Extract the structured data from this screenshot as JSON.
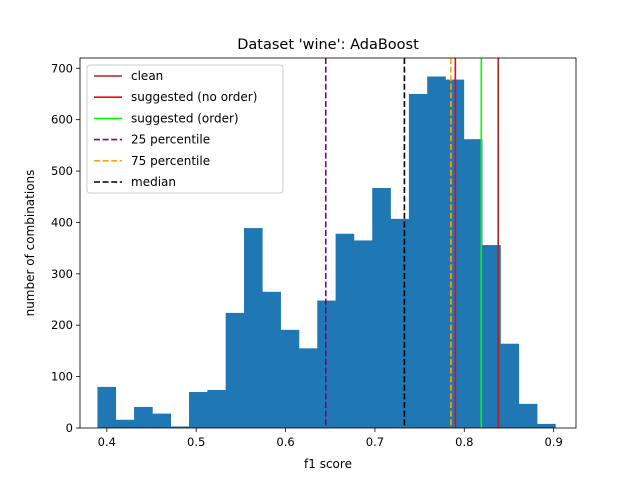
{
  "chart_data": {
    "type": "histogram",
    "title": "Dataset 'wine': AdaBoost",
    "xlabel": "f1 score",
    "ylabel": "number of combinations",
    "xlim": [
      0.37,
      0.925
    ],
    "ylim": [
      0,
      720
    ],
    "xticks": [
      0.4,
      0.5,
      0.6,
      0.7,
      0.8,
      0.9
    ],
    "xtick_labels": [
      "0.4",
      "0.5",
      "0.6",
      "0.7",
      "0.8",
      "0.9"
    ],
    "yticks": [
      0,
      100,
      200,
      300,
      400,
      500,
      600,
      700
    ],
    "ytick_labels": [
      "0",
      "100",
      "200",
      "300",
      "400",
      "500",
      "600",
      "700"
    ],
    "grid": false,
    "legend_position": "top-left",
    "bar_color": "#1f77b4",
    "bin_edges": [
      0.3895,
      0.41,
      0.4305,
      0.451,
      0.4715,
      0.492,
      0.5125,
      0.533,
      0.5535,
      0.574,
      0.5945,
      0.615,
      0.6355,
      0.656,
      0.6765,
      0.697,
      0.7175,
      0.738,
      0.7585,
      0.779,
      0.7995,
      0.82,
      0.8405,
      0.861,
      0.8815,
      0.902
    ],
    "counts": [
      80,
      16,
      41,
      28,
      3,
      70,
      74,
      224,
      389,
      265,
      191,
      155,
      248,
      378,
      365,
      467,
      407,
      650,
      684,
      678,
      562,
      356,
      164,
      47,
      8
    ],
    "vlines": [
      {
        "label": "clean",
        "x": 0.838,
        "color": "#b22222",
        "style": "solid"
      },
      {
        "label": "suggested (no order)",
        "x": 0.79,
        "color": "#ff0000",
        "style": "solid"
      },
      {
        "label": "suggested (order)",
        "x": 0.819,
        "color": "#00ff00",
        "style": "solid"
      },
      {
        "label": "25 percentile",
        "x": 0.645,
        "color": "#800080",
        "style": "dashed"
      },
      {
        "label": "75 percentile",
        "x": 0.785,
        "color": "#ffa500",
        "style": "dashed"
      },
      {
        "label": "median",
        "x": 0.733,
        "color": "#000000",
        "style": "dashed"
      }
    ]
  }
}
